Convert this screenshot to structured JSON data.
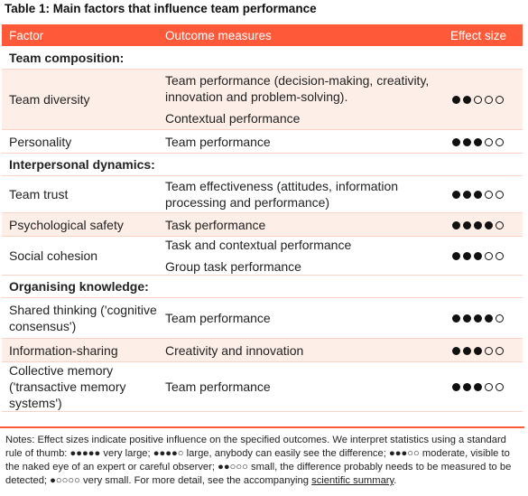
{
  "caption": "Table 1: Main factors that influence team performance",
  "colors": {
    "accent": "#fe5a3a",
    "row_alt": "#fdeee8"
  },
  "headers": {
    "factor": "Factor",
    "outcome": "Outcome measures",
    "effect": "Effect size"
  },
  "sections": [
    {
      "title": "Team composition:",
      "rows": [
        {
          "factor": "Team diversity",
          "outcomes": [
            "Team performance (decision-making, creativity, innovation and problem-solving).",
            "Contextual performance"
          ],
          "effect": 2,
          "alt": true
        },
        {
          "factor": "Personality",
          "outcomes": [
            "Team performance"
          ],
          "effect": 3,
          "alt": false
        }
      ]
    },
    {
      "title": "Interpersonal dynamics:",
      "rows": [
        {
          "factor": "Team trust",
          "outcomes": [
            "Team effectiveness (attitudes, information processing and performance)"
          ],
          "effect": 3,
          "alt": false
        },
        {
          "factor": "Psychological safety",
          "outcomes": [
            "Task performance"
          ],
          "effect": 4,
          "alt": true
        },
        {
          "factor": "Social cohesion",
          "outcomes": [
            "Task and contextual performance",
            "Group task performance"
          ],
          "effect": 3,
          "alt": false
        }
      ]
    },
    {
      "title": "Organising knowledge:",
      "rows": [
        {
          "factor": "Shared thinking ('cognitive consensus')",
          "outcomes": [
            "Team performance"
          ],
          "effect": 4,
          "alt": false
        },
        {
          "factor": "Information-sharing",
          "outcomes": [
            "Creativity and innovation"
          ],
          "effect": 3,
          "alt": true
        },
        {
          "factor": "Collective memory ('transactive memory systems')",
          "outcomes": [
            "Team performance"
          ],
          "effect": 3,
          "alt": false
        }
      ]
    }
  ],
  "notes": {
    "text": "Notes: Effect sizes indicate positive influence on the specified outcomes. We interpret statistics using a standard rule of thumb: ●●●●● very large; ●●●●○ large, anybody can easily see the difference; ●●●○○ moderate, visible to the naked eye of an expert or careful observer; ●●○○○ small, the difference probably needs to be measured to be detected; ●○○○○ very small. For more detail, see the accompanying ",
    "link": "scientific summary",
    "end": "."
  }
}
